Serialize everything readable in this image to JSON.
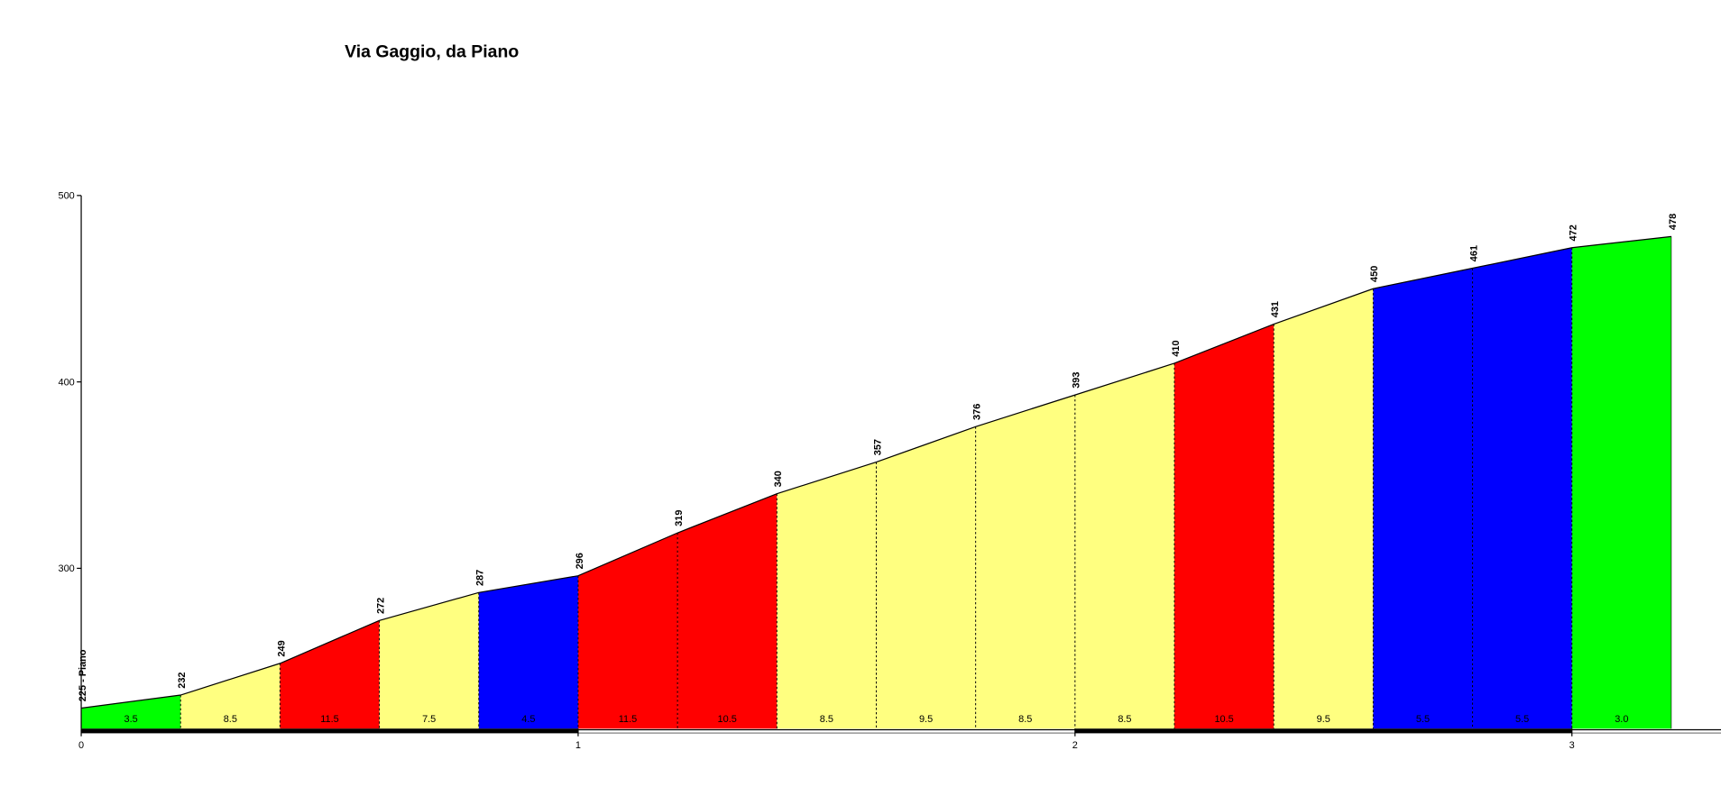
{
  "chart_data": {
    "type": "area",
    "title": "Via Gaggio, da Piano",
    "x": [
      0,
      0.2,
      0.4,
      0.6,
      0.8,
      1.0,
      1.2,
      1.4,
      1.6,
      1.8,
      2.0,
      2.2,
      2.4,
      2.6,
      2.8,
      3.0,
      3.2
    ],
    "values": [
      225,
      232,
      249,
      272,
      287,
      296,
      319,
      340,
      357,
      376,
      393,
      410,
      431,
      450,
      461,
      472,
      478
    ],
    "value_labels": [
      "225 - Piano",
      "232",
      "249",
      "272",
      "287",
      "296",
      "319",
      "340",
      "357",
      "376",
      "393",
      "410",
      "431",
      "450",
      "461",
      "472",
      "478"
    ],
    "gradients": [
      3.5,
      8.5,
      11.5,
      7.5,
      4.5,
      11.5,
      10.5,
      8.5,
      9.5,
      8.5,
      8.5,
      10.5,
      9.5,
      5.5,
      5.5,
      3.0
    ],
    "gradient_labels": [
      "3.5",
      "8.5",
      "11.5",
      "7.5",
      "4.5",
      "11.5",
      "10.5",
      "8.5",
      "9.5",
      "8.5",
      "8.5",
      "10.5",
      "9.5",
      "5.5",
      "5.5",
      "3.0"
    ],
    "gradient_colors": [
      "#00ff00",
      "#ffff80",
      "#ff0000",
      "#ffff80",
      "#0000ff",
      "#ff0000",
      "#ff0000",
      "#ffff80",
      "#ffff80",
      "#ffff80",
      "#ffff80",
      "#ff0000",
      "#ffff80",
      "#0000ff",
      "#0000ff",
      "#00ff00"
    ],
    "xlim": [
      0,
      3.3
    ],
    "ylim": [
      214,
      500
    ],
    "xticks": [
      0,
      1,
      2,
      3
    ],
    "yticks": [
      300,
      400,
      500
    ]
  }
}
